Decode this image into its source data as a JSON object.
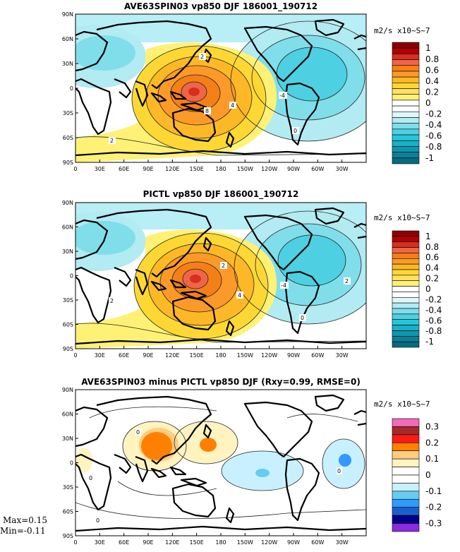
{
  "panels": [
    {
      "title": "AVE63SPIN03 vp850 DJF 186001_190712",
      "units": "m2/s x10~S~7",
      "colorbar": {
        "labels": [
          "1",
          "0.8",
          "0.6",
          "0.4",
          "0.2",
          "0",
          "-0.2",
          "-0.4",
          "-0.6",
          "-0.8",
          "-1"
        ],
        "colors": [
          "#8b0000",
          "#b30000",
          "#d7301f",
          "#ef6548",
          "#f57f17",
          "#fb9a29",
          "#fdb827",
          "#fdd835",
          "#ffe066",
          "#fff176",
          "#ffffff",
          "#ffffff",
          "#e0f7fa",
          "#b2ebf2",
          "#80deea",
          "#4dd0e1",
          "#26c6da",
          "#1ab0c8",
          "#0f97b0",
          "#0a7f96",
          "#076a80"
        ]
      },
      "contour_labels": [
        "2",
        "8",
        "4",
        "-4",
        "0",
        "2"
      ]
    },
    {
      "title": "PICTL vp850 DJF 186001_190712",
      "units": "m2/s x10~S~7",
      "colorbar": {
        "labels": [
          "1",
          "0.8",
          "0.6",
          "0.4",
          "0.2",
          "0",
          "-0.2",
          "-0.4",
          "-0.6",
          "-0.8",
          "-1"
        ],
        "colors": [
          "#8b0000",
          "#b30000",
          "#d7301f",
          "#ef6548",
          "#f57f17",
          "#fb9a29",
          "#fdb827",
          "#fdd835",
          "#ffe066",
          "#fff176",
          "#ffffff",
          "#ffffff",
          "#e0f7fa",
          "#b2ebf2",
          "#80deea",
          "#4dd0e1",
          "#26c6da",
          "#1ab0c8",
          "#0f97b0",
          "#0a7f96",
          "#076a80"
        ]
      },
      "contour_labels": [
        "2",
        "4",
        "-4",
        "2",
        "0",
        "2"
      ]
    },
    {
      "title": "AVE63SPIN03 minus PICTL vp850 DJF (Rxy=0.99, RMSE=0)",
      "units": "m2/s x10~S~7",
      "colorbar": {
        "labels": [
          "0.3",
          "0.2",
          "0.1",
          "0",
          "-0.1",
          "-0.2",
          "-0.3"
        ],
        "colors": [
          "#f06bb8",
          "#a52a2a",
          "#ff1a1a",
          "#ff8000",
          "#ffcc80",
          "#fff3c0",
          "#ffffff",
          "#ffffff",
          "#c8f0ff",
          "#66ccf0",
          "#3399ff",
          "#1a5fcc",
          "#00008b",
          "#8a2be2"
        ]
      },
      "contour_labels": [
        "0",
        "0",
        "0",
        "0"
      ]
    }
  ],
  "axes": {
    "lat_labels": [
      "90N",
      "60N",
      "30N",
      "0",
      "30S",
      "60S",
      "90S"
    ],
    "lon_labels": [
      "0",
      "30E",
      "60E",
      "90E",
      "120E",
      "150E",
      "180",
      "150W",
      "120W",
      "90W",
      "60W",
      "30W"
    ]
  },
  "stats": {
    "max": "Max=0.15",
    "min": "Min=-0.11"
  }
}
